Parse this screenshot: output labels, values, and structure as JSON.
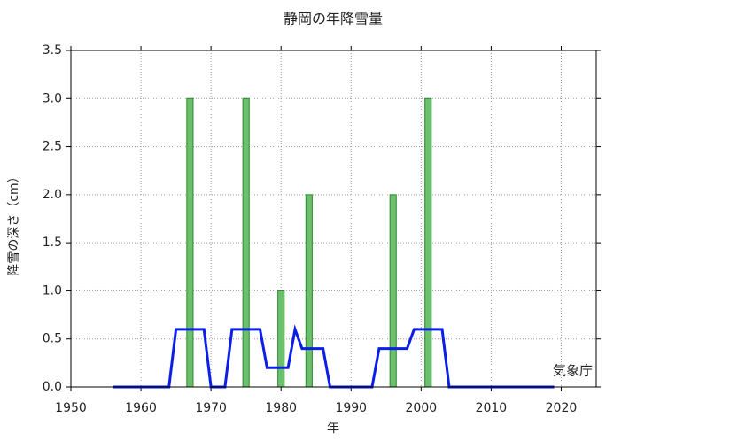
{
  "chart_data": {
    "type": "bar_line",
    "title": "静岡の年降雪量",
    "x_label": "年",
    "y_label": "降雪の深さ（cm）",
    "annotation": "気象庁",
    "xlim": [
      1950,
      2025
    ],
    "xticks": [
      1950,
      1960,
      1970,
      1980,
      1990,
      2000,
      2010,
      2020
    ],
    "ylim": [
      0,
      3.5
    ],
    "yticks": [
      {
        "value": 0,
        "label": "0.0"
      },
      0.5,
      {
        "value": 1,
        "label": "1.0"
      },
      1.5,
      {
        "value": 2,
        "label": "2.0"
      },
      2.5,
      {
        "value": 3,
        "label": "3.0"
      },
      3.5
    ],
    "grid": true,
    "series": [
      {
        "type": "bar",
        "color": "#6cbf6c",
        "edge_color": "#2a8a2a",
        "x": [
          1967,
          1975,
          1980,
          1984,
          1996,
          2001
        ],
        "values": [
          3,
          3,
          1,
          2,
          2,
          3
        ]
      },
      {
        "type": "line",
        "color": "#0a1ee6",
        "x": [
          1956,
          1957,
          1958,
          1959,
          1960,
          1961,
          1962,
          1963,
          1964,
          1965,
          1966,
          1967,
          1968,
          1969,
          1970,
          1971,
          1972,
          1973,
          1974,
          1975,
          1976,
          1977,
          1978,
          1979,
          1980,
          1981,
          1982,
          1983,
          1984,
          1985,
          1986,
          1987,
          1988,
          1989,
          1990,
          1991,
          1992,
          1993,
          1994,
          1995,
          1996,
          1997,
          1998,
          1999,
          2000,
          2001,
          2002,
          2003,
          2004,
          2005,
          2006,
          2007,
          2008,
          2009,
          2010,
          2011,
          2012,
          2013,
          2014,
          2015,
          2016,
          2017,
          2018,
          2019
        ],
        "values": [
          0,
          0,
          0,
          0,
          0,
          0,
          0,
          0,
          0,
          0.6,
          0.6,
          0.6,
          0.6,
          0.6,
          0,
          0,
          0,
          0.6,
          0.6,
          0.6,
          0.6,
          0.6,
          0.2,
          0.2,
          0.2,
          0.2,
          0.6,
          0.4,
          0.4,
          0.4,
          0.4,
          0,
          0,
          0,
          0,
          0,
          0,
          0,
          0.4,
          0.4,
          0.4,
          0.4,
          0.4,
          0.6,
          0.6,
          0.6,
          0.6,
          0.6,
          0,
          0,
          0,
          0,
          0,
          0,
          0,
          0,
          0,
          0,
          0,
          0,
          0,
          0,
          0,
          0
        ]
      }
    ]
  }
}
